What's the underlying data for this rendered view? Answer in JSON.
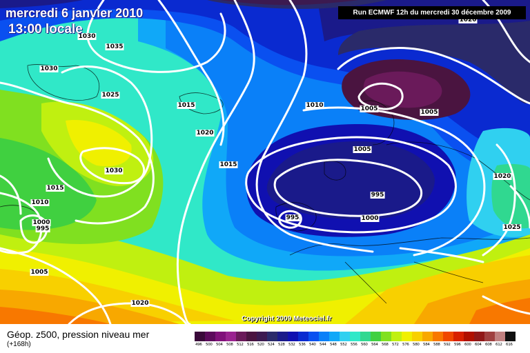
{
  "header": {
    "date": "mercredi 6 janvier 2010",
    "time": "13:00 locale",
    "run": "Run ECMWF 12h du mercredi 30 décembre 2009"
  },
  "copyright": "Copyright 2009 Meteociel.fr",
  "legend": {
    "title": "Géop. z500, pression niveau mer",
    "subtitle": "(+168h)",
    "scale": [
      {
        "value": "496",
        "color": "#3a0a3a"
      },
      {
        "value": "500",
        "color": "#5c0a5c"
      },
      {
        "value": "504",
        "color": "#80107a"
      },
      {
        "value": "508",
        "color": "#9a2290"
      },
      {
        "value": "512",
        "color": "#6a1a5a"
      },
      {
        "value": "516",
        "color": "#4a1440"
      },
      {
        "value": "520",
        "color": "#3c1a50"
      },
      {
        "value": "524",
        "color": "#2a2a6a"
      },
      {
        "value": "528",
        "color": "#1a1a8a"
      },
      {
        "value": "532",
        "color": "#1010b0"
      },
      {
        "value": "536",
        "color": "#0a2ad0"
      },
      {
        "value": "540",
        "color": "#0a50f0"
      },
      {
        "value": "544",
        "color": "#0a80f8"
      },
      {
        "value": "548",
        "color": "#10a8f8"
      },
      {
        "value": "552",
        "color": "#30d0f0"
      },
      {
        "value": "556",
        "color": "#30e8c8"
      },
      {
        "value": "560",
        "color": "#30d890"
      },
      {
        "value": "564",
        "color": "#40d040"
      },
      {
        "value": "568",
        "color": "#80e020"
      },
      {
        "value": "572",
        "color": "#c0f010"
      },
      {
        "value": "576",
        "color": "#f0f000"
      },
      {
        "value": "580",
        "color": "#f8d000"
      },
      {
        "value": "584",
        "color": "#f8a800"
      },
      {
        "value": "588",
        "color": "#f87800"
      },
      {
        "value": "592",
        "color": "#f04800"
      },
      {
        "value": "596",
        "color": "#d82000"
      },
      {
        "value": "600",
        "color": "#b01000"
      },
      {
        "value": "604",
        "color": "#901818"
      },
      {
        "value": "608",
        "color": "#a04040"
      },
      {
        "value": "612",
        "color": "#c08080"
      },
      {
        "value": "616",
        "color": "#101010"
      }
    ]
  },
  "isobar_labels": [
    {
      "text": "1035",
      "id": "1035-greenland"
    },
    {
      "text": "1030",
      "id": "1030-greenland-west"
    },
    {
      "text": "1030",
      "id": "1030-top"
    },
    {
      "text": "1025",
      "id": "1025-greenland"
    },
    {
      "text": "1015",
      "id": "1015-iceland"
    },
    {
      "text": "1020",
      "id": "1020-atlantic"
    },
    {
      "text": "1015",
      "id": "1015-atlantic"
    },
    {
      "text": "1010",
      "id": "1010-norway"
    },
    {
      "text": "1005",
      "id": "1005-scandinavia"
    },
    {
      "text": "1005",
      "id": "1005-russia"
    },
    {
      "text": "1005",
      "id": "1005-northsea"
    },
    {
      "text": "1030",
      "id": "1030-high"
    },
    {
      "text": "1015",
      "id": "1015-west"
    },
    {
      "text": "1010",
      "id": "1010-west"
    },
    {
      "text": "1000",
      "id": "1000-west"
    },
    {
      "text": "995",
      "id": "995-west"
    },
    {
      "text": "1005",
      "id": "1005-southwest"
    },
    {
      "text": "995",
      "id": "995-low"
    },
    {
      "text": "995",
      "id": "995-biscay"
    },
    {
      "text": "1000",
      "id": "1000-europe"
    },
    {
      "text": "1020",
      "id": "1020-east"
    },
    {
      "text": "1025",
      "id": "1025-east"
    },
    {
      "text": "1020",
      "id": "1020-south"
    },
    {
      "text": "1020",
      "id": "1020-topright"
    }
  ]
}
